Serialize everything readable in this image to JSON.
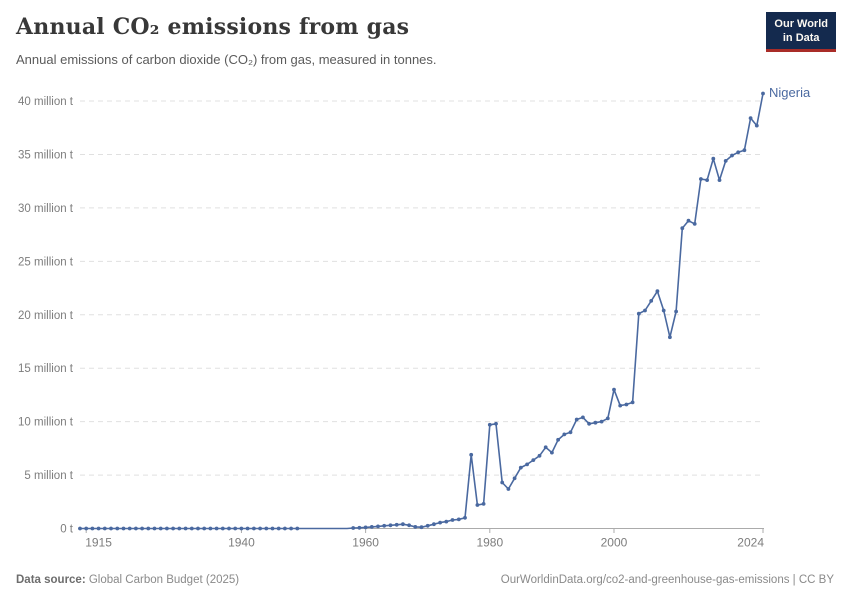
{
  "header": {
    "title": "Annual CO₂ emissions from gas",
    "subtitle": "Annual emissions of carbon dioxide (CO₂) from gas, measured in tonnes."
  },
  "logo": {
    "line1": "Our World",
    "line2": "in Data",
    "bg_color": "#142a4e",
    "accent_color": "#a92c28"
  },
  "chart_data": {
    "type": "line",
    "title": "Annual CO₂ emissions from gas",
    "xlabel": "",
    "ylabel": "",
    "xlim": [
      1914,
      2024
    ],
    "ylim": [
      0,
      42.8
    ],
    "grid": "dashed-horizontal",
    "legend_position": "end-of-line-label",
    "x_ticks": [
      1915,
      1940,
      1960,
      1980,
      2000,
      2024
    ],
    "x_tick_labels": [
      "1915",
      "1940",
      "1960",
      "1980",
      "2000",
      "2024"
    ],
    "y_ticks": [
      0,
      5,
      10,
      15,
      20,
      25,
      30,
      35,
      40
    ],
    "y_tick_labels": [
      "0 t",
      "5 million t",
      "10 million t",
      "15 million t",
      "20 million t",
      "25 million t",
      "30 million t",
      "35 million t",
      "40 million t"
    ],
    "colors": {
      "line": "#4a69a0",
      "gridline": "#e0e0e0",
      "axis_line": "#ababab",
      "tick_text": "#7d7d7d"
    },
    "series": [
      {
        "name": "Nigeria",
        "color": "#4a69a0",
        "no_marker_years": [
          1950,
          1951,
          1952,
          1953,
          1954,
          1955,
          1956,
          1957
        ],
        "points": [
          [
            1914,
            0
          ],
          [
            1915,
            0
          ],
          [
            1916,
            0
          ],
          [
            1917,
            0
          ],
          [
            1918,
            0
          ],
          [
            1919,
            0
          ],
          [
            1920,
            0
          ],
          [
            1921,
            0
          ],
          [
            1922,
            0
          ],
          [
            1923,
            0
          ],
          [
            1924,
            0
          ],
          [
            1925,
            0
          ],
          [
            1926,
            0
          ],
          [
            1927,
            0
          ],
          [
            1928,
            0
          ],
          [
            1929,
            0
          ],
          [
            1930,
            0
          ],
          [
            1931,
            0
          ],
          [
            1932,
            0
          ],
          [
            1933,
            0
          ],
          [
            1934,
            0
          ],
          [
            1935,
            0
          ],
          [
            1936,
            0
          ],
          [
            1937,
            0
          ],
          [
            1938,
            0
          ],
          [
            1939,
            0
          ],
          [
            1940,
            0
          ],
          [
            1941,
            0
          ],
          [
            1942,
            0
          ],
          [
            1943,
            0
          ],
          [
            1944,
            0
          ],
          [
            1945,
            0
          ],
          [
            1946,
            0
          ],
          [
            1947,
            0
          ],
          [
            1948,
            0
          ],
          [
            1949,
            0
          ],
          [
            1950,
            0
          ],
          [
            1951,
            0
          ],
          [
            1952,
            0
          ],
          [
            1953,
            0
          ],
          [
            1954,
            0
          ],
          [
            1955,
            0
          ],
          [
            1956,
            0
          ],
          [
            1957,
            0
          ],
          [
            1958,
            0.05
          ],
          [
            1959,
            0.07
          ],
          [
            1960,
            0.1
          ],
          [
            1961,
            0.15
          ],
          [
            1962,
            0.2
          ],
          [
            1963,
            0.25
          ],
          [
            1964,
            0.3
          ],
          [
            1965,
            0.35
          ],
          [
            1966,
            0.4
          ],
          [
            1967,
            0.3
          ],
          [
            1968,
            0.15
          ],
          [
            1969,
            0.12
          ],
          [
            1970,
            0.25
          ],
          [
            1971,
            0.4
          ],
          [
            1972,
            0.55
          ],
          [
            1973,
            0.65
          ],
          [
            1974,
            0.8
          ],
          [
            1975,
            0.85
          ],
          [
            1976,
            1.0
          ],
          [
            1977,
            6.9
          ],
          [
            1978,
            2.2
          ],
          [
            1979,
            2.3
          ],
          [
            1980,
            9.7
          ],
          [
            1981,
            9.8
          ],
          [
            1982,
            4.3
          ],
          [
            1983,
            3.7
          ],
          [
            1984,
            4.7
          ],
          [
            1985,
            5.7
          ],
          [
            1986,
            6.0
          ],
          [
            1987,
            6.4
          ],
          [
            1988,
            6.8
          ],
          [
            1989,
            7.6
          ],
          [
            1990,
            7.1
          ],
          [
            1991,
            8.3
          ],
          [
            1992,
            8.8
          ],
          [
            1993,
            9.0
          ],
          [
            1994,
            10.2
          ],
          [
            1995,
            10.4
          ],
          [
            1996,
            9.8
          ],
          [
            1997,
            9.9
          ],
          [
            1998,
            10.0
          ],
          [
            1999,
            10.3
          ],
          [
            2000,
            13.0
          ],
          [
            2001,
            11.5
          ],
          [
            2002,
            11.6
          ],
          [
            2003,
            11.8
          ],
          [
            2004,
            20.1
          ],
          [
            2005,
            20.4
          ],
          [
            2006,
            21.3
          ],
          [
            2007,
            22.2
          ],
          [
            2008,
            20.4
          ],
          [
            2009,
            17.9
          ],
          [
            2010,
            20.3
          ],
          [
            2011,
            28.1
          ],
          [
            2012,
            28.8
          ],
          [
            2013,
            28.5
          ],
          [
            2014,
            32.7
          ],
          [
            2015,
            32.6
          ],
          [
            2016,
            34.6
          ],
          [
            2017,
            32.6
          ],
          [
            2018,
            34.4
          ],
          [
            2019,
            34.9
          ],
          [
            2020,
            35.2
          ],
          [
            2021,
            35.4
          ],
          [
            2022,
            38.4
          ],
          [
            2023,
            37.7
          ],
          [
            2024,
            40.7
          ]
        ]
      }
    ]
  },
  "footer": {
    "source_label": "Data source:",
    "source_value": " Global Carbon Budget (2025)",
    "link_text": "OurWorldinData.org/co2-and-greenhouse-gas-emissions | CC BY"
  }
}
